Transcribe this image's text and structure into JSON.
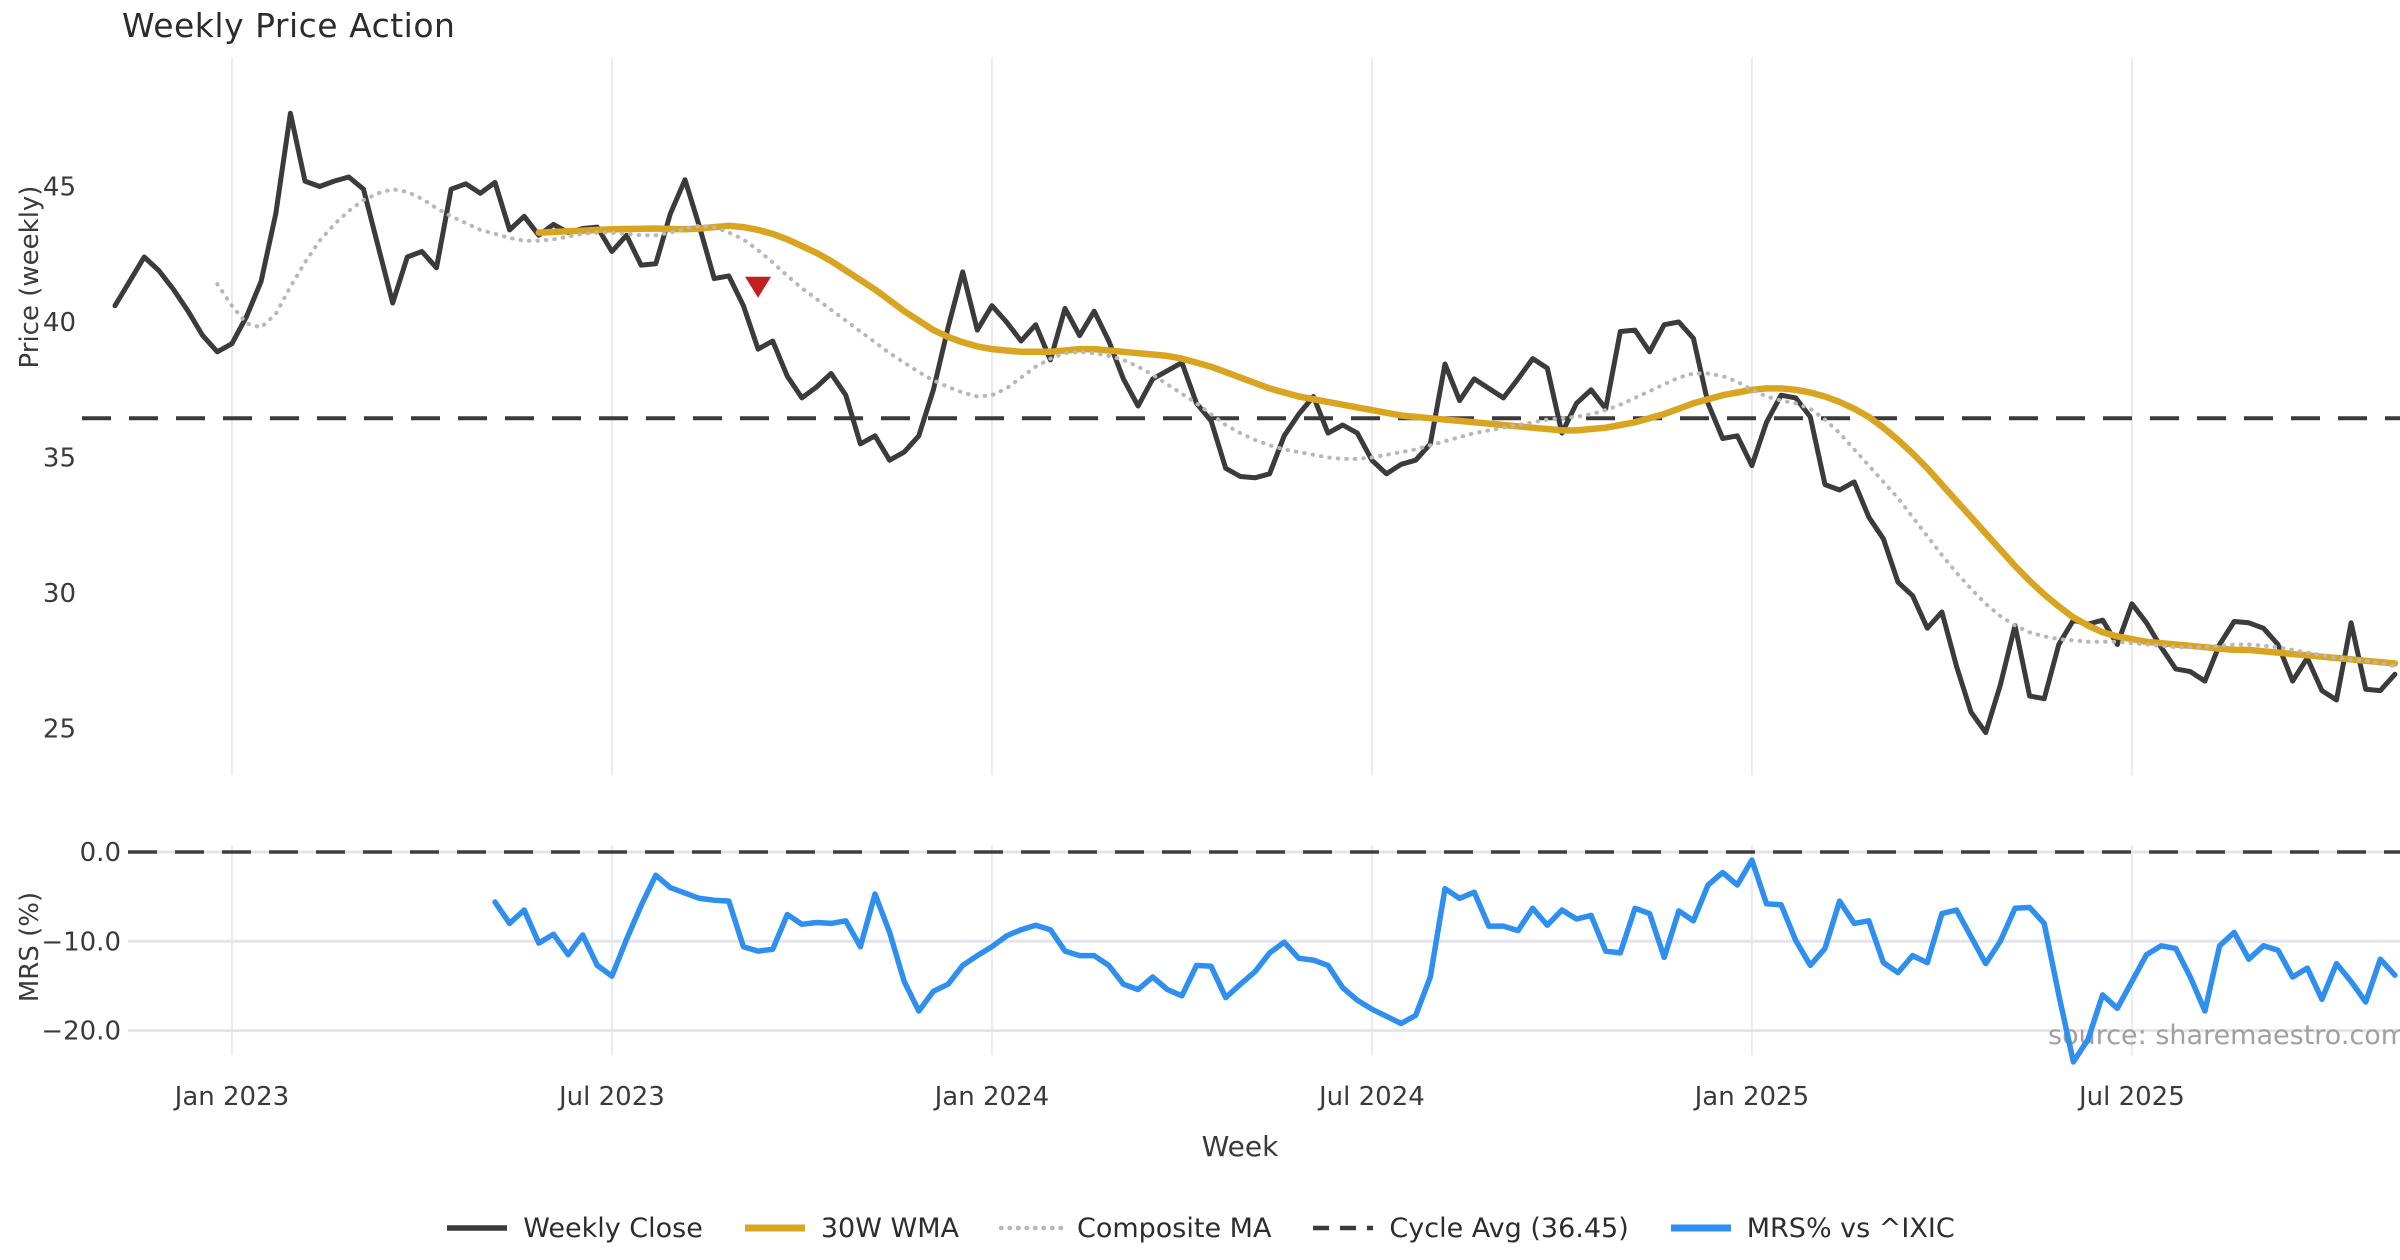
{
  "chart": {
    "title": "Weekly Price Action",
    "watermark": "source: sharemaestro.com",
    "axes": {
      "price": {
        "label": "Price (weekly)",
        "ticks": [
          45,
          40,
          35,
          30,
          25
        ],
        "ylim": [
          23.3,
          49.9
        ]
      },
      "mrs": {
        "label": "MRS (%)",
        "ticks": [
          0,
          -10,
          -20
        ],
        "tick_labels": [
          "0.0",
          "−10.0",
          "−20.0"
        ],
        "ylim": [
          1.0,
          -24.2
        ]
      },
      "x": {
        "label": "Week",
        "tick_week_indices": [
          8,
          34,
          60,
          86,
          112,
          138
        ],
        "tick_labels": [
          "Jan 2023",
          "Jul 2023",
          "Jan 2024",
          "Jul 2024",
          "Jan 2025",
          "Jul 2025"
        ]
      }
    }
  },
  "chart_data": {
    "type": "line",
    "title": "Weekly Price Action",
    "x_start_date": "2022-11-07",
    "x_freq": "weekly",
    "n_weeks": 157,
    "grid": "vertical-light",
    "legend_position": "bottom-center",
    "series": [
      {
        "name": "Weekly Close",
        "panel": "price",
        "color": "#3b3b3b",
        "style": "solid",
        "width": 5,
        "start_index": 0,
        "values": [
          40.6,
          41.5,
          42.4,
          41.9,
          41.2,
          40.4,
          39.5,
          38.9,
          39.2,
          40.2,
          41.5,
          44.0,
          47.7,
          45.2,
          45.0,
          45.2,
          45.35,
          44.9,
          42.8,
          40.7,
          42.4,
          42.6,
          42.0,
          44.9,
          45.1,
          44.75,
          45.15,
          43.4,
          43.9,
          43.2,
          43.6,
          43.3,
          43.45,
          43.5,
          42.6,
          43.2,
          42.1,
          42.15,
          44.0,
          45.25,
          43.5,
          41.6,
          41.7,
          40.6,
          39.0,
          39.3,
          38.0,
          37.2,
          37.6,
          38.1,
          37.3,
          35.5,
          35.8,
          34.9,
          35.2,
          35.8,
          37.5,
          39.8,
          41.85,
          39.7,
          40.6,
          40.0,
          39.3,
          39.9,
          38.6,
          40.5,
          39.5,
          40.4,
          39.3,
          37.9,
          36.9,
          37.9,
          38.2,
          38.5,
          37.0,
          36.35,
          34.6,
          34.3,
          34.25,
          34.4,
          35.8,
          36.6,
          37.25,
          35.9,
          36.2,
          35.9,
          34.9,
          34.4,
          34.75,
          34.9,
          35.5,
          38.45,
          37.1,
          37.9,
          37.55,
          37.2,
          37.9,
          38.65,
          38.3,
          35.9,
          37.0,
          37.5,
          36.8,
          39.65,
          39.7,
          38.9,
          39.9,
          40.0,
          39.4,
          37.0,
          35.7,
          35.8,
          34.7,
          36.3,
          37.3,
          37.2,
          36.5,
          34.0,
          33.8,
          34.1,
          32.8,
          32.0,
          30.4,
          29.9,
          28.7,
          29.3,
          27.3,
          25.6,
          24.85,
          26.6,
          28.8,
          26.2,
          26.1,
          28.1,
          29.0,
          28.85,
          29.0,
          28.1,
          29.6,
          28.9,
          28.0,
          27.2,
          27.1,
          26.75,
          28.1,
          28.95,
          28.9,
          28.7,
          28.1,
          26.75,
          27.6,
          26.4,
          26.05,
          28.9,
          26.45,
          26.4,
          27.0
        ]
      },
      {
        "name": "30W WMA",
        "panel": "price",
        "color": "#d9a521",
        "style": "solid",
        "width": 6.5,
        "start_index": 29,
        "values": [
          43.3,
          43.32,
          43.35,
          43.37,
          43.4,
          43.42,
          43.43,
          43.44,
          43.45,
          43.43,
          43.42,
          43.45,
          43.5,
          43.55,
          43.5,
          43.4,
          43.25,
          43.05,
          42.8,
          42.55,
          42.25,
          41.9,
          41.55,
          41.2,
          40.8,
          40.4,
          40.05,
          39.7,
          39.45,
          39.25,
          39.1,
          39.0,
          38.95,
          38.9,
          38.9,
          38.9,
          38.95,
          39.0,
          39.0,
          38.95,
          38.9,
          38.85,
          38.8,
          38.75,
          38.65,
          38.5,
          38.35,
          38.15,
          37.95,
          37.75,
          37.55,
          37.4,
          37.25,
          37.15,
          37.05,
          36.95,
          36.85,
          36.75,
          36.65,
          36.55,
          36.5,
          36.45,
          36.4,
          36.35,
          36.3,
          36.25,
          36.2,
          36.15,
          36.1,
          36.05,
          36.0,
          36.0,
          36.05,
          36.1,
          36.2,
          36.3,
          36.45,
          36.6,
          36.8,
          37.0,
          37.15,
          37.3,
          37.4,
          37.5,
          37.55,
          37.55,
          37.5,
          37.4,
          37.25,
          37.05,
          36.8,
          36.5,
          36.1,
          35.65,
          35.15,
          34.6,
          34.0,
          33.4,
          32.8,
          32.2,
          31.6,
          31.0,
          30.45,
          29.95,
          29.5,
          29.1,
          28.8,
          28.55,
          28.4,
          28.3,
          28.2,
          28.15,
          28.1,
          28.05,
          28.0,
          27.95,
          27.9,
          27.9,
          27.85,
          27.8,
          27.75,
          27.7,
          27.65,
          27.6,
          27.55,
          27.5,
          27.45,
          27.4
        ]
      },
      {
        "name": "Composite MA",
        "panel": "price",
        "color": "#b8b8b8",
        "style": "dotted",
        "width": 4,
        "start_index": 7,
        "values": [
          41.4,
          40.6,
          39.95,
          39.8,
          40.3,
          41.3,
          42.2,
          43.0,
          43.6,
          44.1,
          44.5,
          44.75,
          44.9,
          44.8,
          44.55,
          44.2,
          43.9,
          43.65,
          43.4,
          43.25,
          43.1,
          43.0,
          43.0,
          43.05,
          43.15,
          43.25,
          43.3,
          43.3,
          43.25,
          43.2,
          43.2,
          43.3,
          43.45,
          43.55,
          43.5,
          43.3,
          43.05,
          42.65,
          42.2,
          41.7,
          41.25,
          40.85,
          40.45,
          40.05,
          39.65,
          39.25,
          38.85,
          38.5,
          38.15,
          37.85,
          37.6,
          37.4,
          37.25,
          37.3,
          37.55,
          37.95,
          38.35,
          38.65,
          38.85,
          38.9,
          38.85,
          38.75,
          38.6,
          38.35,
          38.05,
          37.7,
          37.35,
          37.0,
          36.6,
          36.2,
          35.9,
          35.65,
          35.45,
          35.3,
          35.2,
          35.1,
          35.0,
          34.95,
          34.95,
          35.0,
          35.1,
          35.2,
          35.3,
          35.45,
          35.6,
          35.75,
          35.9,
          36.0,
          36.1,
          36.2,
          36.3,
          36.4,
          36.45,
          36.5,
          36.6,
          36.75,
          36.95,
          37.2,
          37.45,
          37.7,
          37.95,
          38.1,
          38.1,
          38.0,
          37.8,
          37.5,
          37.25,
          37.1,
          37.0,
          36.8,
          36.4,
          35.9,
          35.3,
          34.7,
          34.1,
          33.5,
          32.8,
          32.1,
          31.4,
          30.75,
          30.15,
          29.6,
          29.15,
          28.8,
          28.55,
          28.4,
          28.3,
          28.25,
          28.2,
          28.2,
          28.2,
          28.15,
          28.1,
          28.05,
          28.0,
          28.0,
          28.0,
          28.05,
          28.1,
          28.1,
          28.05,
          28.0,
          27.9,
          27.8,
          27.7,
          27.6,
          27.55,
          27.5,
          27.4,
          27.3
        ]
      },
      {
        "name": "MRS% vs ^IXIC",
        "panel": "mrs",
        "color": "#2e8fef",
        "style": "solid",
        "width": 5.5,
        "start_index": 26,
        "values": [
          -5.6,
          -8.0,
          -6.5,
          -10.2,
          -9.2,
          -11.5,
          -9.3,
          -12.7,
          -13.9,
          -9.8,
          -6.0,
          -2.6,
          -4.0,
          -4.6,
          -5.2,
          -5.4,
          -5.5,
          -10.6,
          -11.1,
          -10.9,
          -7.0,
          -8.1,
          -7.9,
          -8.0,
          -7.7,
          -10.6,
          -4.7,
          -9.0,
          -14.5,
          -17.8,
          -15.6,
          -14.8,
          -12.7,
          -11.6,
          -10.6,
          -9.4,
          -8.7,
          -8.2,
          -8.7,
          -11.1,
          -11.6,
          -11.6,
          -12.7,
          -14.8,
          -15.4,
          -14.0,
          -15.4,
          -16.1,
          -12.7,
          -12.8,
          -16.3,
          -14.8,
          -13.4,
          -11.3,
          -10.1,
          -11.9,
          -12.1,
          -12.7,
          -15.2,
          -16.6,
          -17.6,
          -18.4,
          -19.2,
          -18.3,
          -14.0,
          -4.1,
          -5.2,
          -4.5,
          -8.3,
          -8.3,
          -8.8,
          -6.3,
          -8.2,
          -6.5,
          -7.5,
          -7.1,
          -11.1,
          -11.3,
          -6.3,
          -6.9,
          -11.8,
          -6.6,
          -7.7,
          -3.7,
          -2.3,
          -3.7,
          -0.9,
          -5.8,
          -5.9,
          -9.9,
          -12.7,
          -10.8,
          -5.5,
          -8.0,
          -7.7,
          -12.4,
          -13.5,
          -11.6,
          -12.4,
          -6.9,
          -6.5,
          -9.5,
          -12.5,
          -10.0,
          -6.3,
          -6.2,
          -8.0,
          -16.0,
          -23.5,
          -21.0,
          -16.0,
          -17.5,
          -14.5,
          -11.5,
          -10.5,
          -10.8,
          -14.0,
          -17.8,
          -10.5,
          -9.0,
          -12.0,
          -10.5,
          -11.0,
          -14.0,
          -13.0,
          -16.5,
          -12.5,
          -14.5,
          -16.8,
          -12.0,
          -13.8
        ]
      }
    ],
    "reference_lines": [
      {
        "name": "Cycle Avg (36.45)",
        "panel": "price",
        "value": 36.45,
        "style": "dashed",
        "color": "#3a3a3a"
      },
      {
        "name": "MRS zero line",
        "panel": "mrs",
        "value": 0.0,
        "style": "dashed",
        "color": "#3f3f3f"
      }
    ],
    "markers": [
      {
        "name": "sell-signal",
        "shape": "triangle-down",
        "color": "#c41f1f",
        "panel": "price",
        "week_index": 44,
        "value": 41.3
      }
    ]
  },
  "legend": {
    "items": [
      {
        "label": "Weekly Close",
        "color": "#3b3b3b",
        "style": "solid",
        "weight": 5.5
      },
      {
        "label": "30W WMA",
        "color": "#d9a521",
        "style": "solid",
        "weight": 7
      },
      {
        "label": "Composite MA",
        "color": "#b8b8b8",
        "style": "dotted",
        "weight": 4.5
      },
      {
        "label": "Cycle Avg (36.45)",
        "color": "#3a3a3a",
        "style": "dashed",
        "weight": 4.5
      },
      {
        "label": "MRS% vs ^IXIC",
        "color": "#2e8fef",
        "style": "solid",
        "weight": 7
      }
    ]
  }
}
